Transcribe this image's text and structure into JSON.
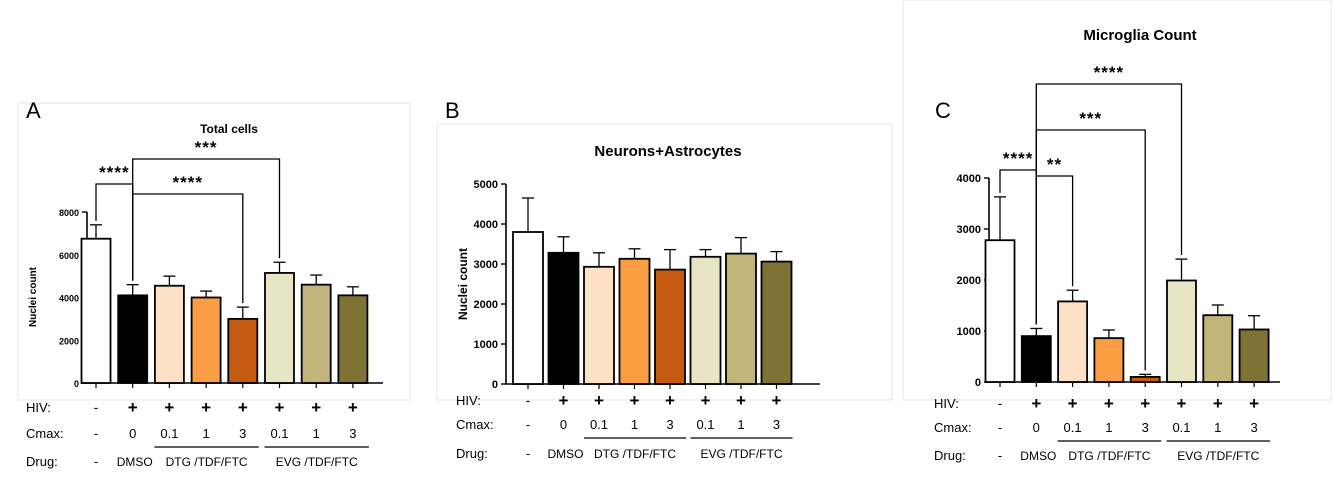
{
  "colors": {
    "white": "#ffffff",
    "black": "#000000",
    "peach": "#fde0c5",
    "orange": "#fb9e43",
    "rust": "#c55a11",
    "cream": "#e8e5c5",
    "khaki": "#c2b57c",
    "olive": "#7f7235"
  },
  "bar_colors": [
    "white",
    "black",
    "peach",
    "orange",
    "rust",
    "cream",
    "khaki",
    "olive"
  ],
  "panels": [
    {
      "letter": "A",
      "row_labels": {
        "hiv": "HIV:",
        "cmax": "Cmax:",
        "drug": "Drug:"
      },
      "hiv": [
        "-",
        "+",
        "+",
        "+",
        "+",
        "+",
        "+",
        "+"
      ],
      "cmax": [
        "-",
        "0",
        "0.1",
        "1",
        "3",
        "0.1",
        "1",
        "3"
      ],
      "drug_dash": "-",
      "drug_dmso": "DMSO",
      "drug_group1": "DTG /TDF/FTC",
      "drug_group2": "EVG /TDF/FTC"
    },
    {
      "letter": "B",
      "row_labels": {
        "hiv": "HIV:",
        "cmax": "Cmax:",
        "drug": "Drug:"
      },
      "hiv": [
        "-",
        "+",
        "+",
        "+",
        "+",
        "+",
        "+",
        "+"
      ],
      "cmax": [
        "-",
        "0",
        "0.1",
        "1",
        "3",
        "0.1",
        "1",
        "3"
      ],
      "drug_dash": "-",
      "drug_dmso": "DMSO",
      "drug_group1": "DTG /TDF/FTC",
      "drug_group2": "EVG /TDF/FTC"
    },
    {
      "letter": "C",
      "row_labels": {
        "hiv": "HIV:",
        "cmax": "Cmax:",
        "drug": "Drug:"
      },
      "hiv": [
        "-",
        "+",
        "+",
        "+",
        "+",
        "+",
        "+",
        "+"
      ],
      "cmax": [
        "-",
        "0",
        "0.1",
        "1",
        "3",
        "0.1",
        "1",
        "3"
      ],
      "drug_dash": "-",
      "drug_dmso": "DMSO",
      "drug_group1": "DTG /TDF/FTC",
      "drug_group2": "EVG /TDF/FTC"
    }
  ],
  "chart_data": [
    {
      "type": "bar",
      "title": "Total cells",
      "ylabel": "Nuclei count",
      "ylim": [
        0,
        8000
      ],
      "yticks": [
        0,
        2000,
        4000,
        6000,
        8000
      ],
      "values": [
        6750,
        4100,
        4550,
        4000,
        3000,
        5150,
        4600,
        4100
      ],
      "errors": [
        650,
        500,
        450,
        300,
        550,
        500,
        450,
        400
      ],
      "significance": [
        {
          "from": 0,
          "to": 1,
          "label": "****"
        },
        {
          "from": 1,
          "to": 4,
          "label": "****"
        },
        {
          "from": 1,
          "to": 5,
          "label": "***"
        }
      ]
    },
    {
      "type": "bar",
      "title": "Neurons+Astrocytes",
      "ylabel": "Nuclei count",
      "ylim": [
        0,
        5000
      ],
      "yticks": [
        0,
        1000,
        2000,
        3000,
        4000,
        5000
      ],
      "values": [
        3800,
        3280,
        2930,
        3130,
        2860,
        3180,
        3260,
        3060
      ],
      "errors": [
        850,
        400,
        350,
        250,
        500,
        180,
        400,
        250
      ],
      "significance": []
    },
    {
      "type": "bar",
      "title": "Microglia Count",
      "ylabel": "",
      "ylim": [
        0,
        4000
      ],
      "yticks": [
        0,
        1000,
        2000,
        3000,
        4000
      ],
      "values": [
        2780,
        900,
        1580,
        860,
        100,
        1990,
        1310,
        1030
      ],
      "errors": [
        850,
        150,
        220,
        160,
        50,
        420,
        200,
        270
      ],
      "significance": [
        {
          "from": 0,
          "to": 1,
          "label": "****"
        },
        {
          "from": 1,
          "to": 4,
          "label": "***"
        },
        {
          "from": 1,
          "to": 2,
          "label": "**"
        },
        {
          "from": 1,
          "to": 5,
          "label": "****"
        }
      ]
    }
  ]
}
